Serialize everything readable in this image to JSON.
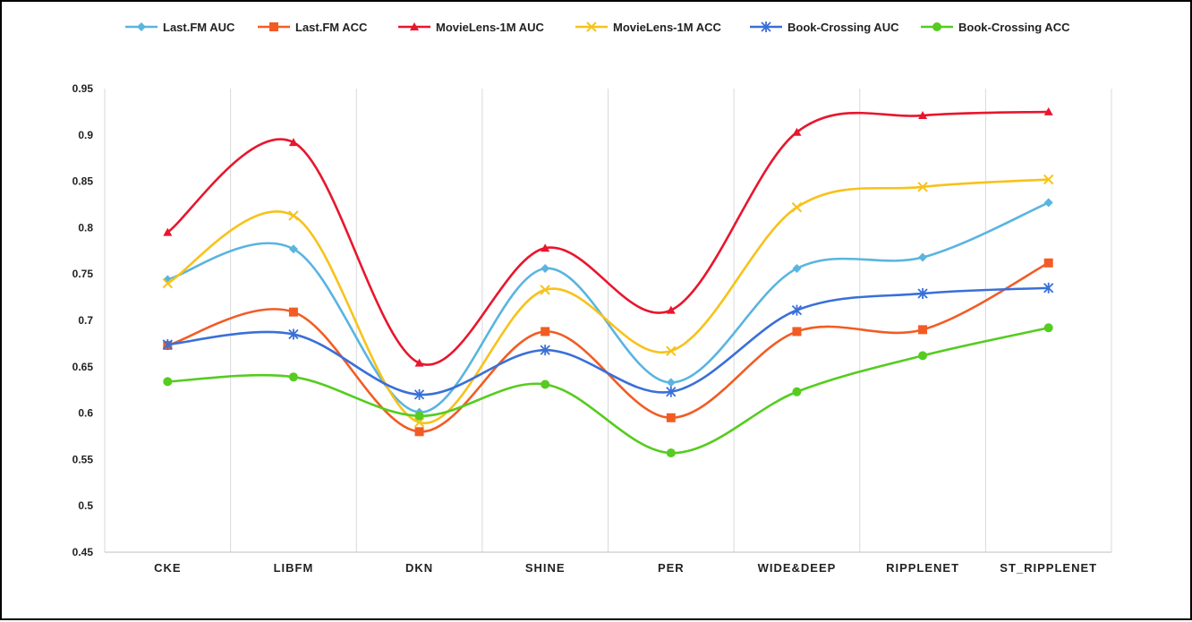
{
  "chart_data": {
    "type": "line",
    "categories": [
      "CKE",
      "LIBFM",
      "DKN",
      "SHINE",
      "PER",
      "WIDE&DEEP",
      "RIPPLENET",
      "ST_RIPPLENET"
    ],
    "ylim": [
      0.45,
      0.95
    ],
    "yticks": [
      "0.45",
      "0.5",
      "0.55",
      "0.6",
      "0.65",
      "0.7",
      "0.75",
      "0.8",
      "0.85",
      "0.9",
      "0.95"
    ],
    "grid": "vertical",
    "legend_position": "top",
    "series": [
      {
        "name": "Last.FM AUC",
        "color": "#5ab4e0",
        "marker": "diamond",
        "values": [
          0.744,
          0.777,
          0.601,
          0.756,
          0.633,
          0.756,
          0.768,
          0.827
        ]
      },
      {
        "name": "Last.FM ACC",
        "color": "#f25c24",
        "marker": "square",
        "values": [
          0.673,
          0.709,
          0.58,
          0.688,
          0.595,
          0.688,
          0.69,
          0.762
        ]
      },
      {
        "name": "MovieLens-1M AUC",
        "color": "#e8162e",
        "marker": "triangle",
        "values": [
          0.795,
          0.892,
          0.654,
          0.778,
          0.711,
          0.903,
          0.921,
          0.925
        ]
      },
      {
        "name": "MovieLens-1M ACC",
        "color": "#f7c21a",
        "marker": "x",
        "values": [
          0.74,
          0.813,
          0.59,
          0.733,
          0.667,
          0.822,
          0.844,
          0.852
        ]
      },
      {
        "name": "Book-Crossing AUC",
        "color": "#3a6fd8",
        "marker": "star",
        "values": [
          0.674,
          0.685,
          0.62,
          0.668,
          0.623,
          0.711,
          0.729,
          0.735
        ]
      },
      {
        "name": "Book-Crossing ACC",
        "color": "#55cc1f",
        "marker": "circle",
        "values": [
          0.634,
          0.639,
          0.597,
          0.631,
          0.557,
          0.623,
          0.662,
          0.692
        ]
      }
    ]
  }
}
